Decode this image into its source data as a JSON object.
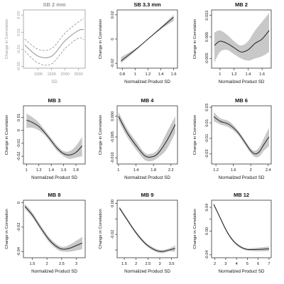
{
  "colors": {
    "band": "#c8c8c8",
    "line": "#222222",
    "axis": "#333333",
    "faded": "#9a9a9a"
  },
  "chart_data": [
    {
      "type": "line",
      "title": "SB 2 mm",
      "style": "dashed-faded",
      "xlabel": "SD",
      "ylabel": "Change in Correlation",
      "xlim": [
        450,
        2750
      ],
      "ylim": [
        -0.032,
        0.036
      ],
      "xticks": [
        1000,
        1500,
        2000,
        2500
      ],
      "yticks": [
        -0.03,
        -0.01,
        0.01,
        0.03
      ],
      "x": [
        500,
        1000,
        1500,
        2000,
        2500,
        2700
      ],
      "y": [
        -0.005,
        -0.018,
        -0.018,
        0.0,
        0.012,
        0.013
      ],
      "lower": [
        -0.012,
        -0.026,
        -0.027,
        -0.009,
        0.003,
        0.001
      ],
      "upper": [
        0.002,
        -0.01,
        -0.009,
        0.009,
        0.022,
        0.026
      ]
    },
    {
      "type": "line",
      "title": "SB 3.3 mm",
      "style": "band",
      "xlabel": "Normalized Product SD",
      "ylabel": "Change in Correlation",
      "xlim": [
        0.72,
        1.66
      ],
      "ylim": [
        -0.024,
        0.024
      ],
      "xticks": [
        0.8,
        1.0,
        1.2,
        1.4,
        1.6
      ],
      "yticks": [
        -0.02,
        0.0,
        0.02
      ],
      "x": [
        0.78,
        1.0,
        1.2,
        1.4,
        1.6
      ],
      "y": [
        -0.018,
        -0.009,
        0.0,
        0.009,
        0.018
      ],
      "lower": [
        -0.02,
        -0.01,
        0.0,
        0.008,
        0.015
      ],
      "upper": [
        -0.015,
        -0.008,
        0.0,
        0.01,
        0.02
      ]
    },
    {
      "type": "line",
      "title": "MB 2",
      "style": "band",
      "xlabel": "Normalized Product SD",
      "ylabel": "Change in Correlation",
      "xlim": [
        0.88,
        1.73
      ],
      "ylim": [
        -0.0095,
        0.0175
      ],
      "xticks": [
        1.0,
        1.2,
        1.4,
        1.6
      ],
      "yticks": [
        -0.005,
        0.005,
        0.015
      ],
      "yticklabels": [
        "-0.005",
        "0.005",
        "0.015"
      ],
      "x": [
        0.92,
        1.0,
        1.1,
        1.2,
        1.3,
        1.4,
        1.5,
        1.6,
        1.7
      ],
      "y": [
        0.001,
        0.003,
        0.002,
        0.0,
        -0.002,
        -0.001,
        0.002,
        0.004,
        0.008
      ],
      "lower": [
        -0.007,
        -0.002,
        -0.001,
        -0.003,
        -0.005,
        -0.006,
        -0.005,
        -0.004,
        -0.002
      ],
      "upper": [
        0.007,
        0.008,
        0.006,
        0.003,
        0.001,
        0.003,
        0.008,
        0.012,
        0.016
      ]
    },
    {
      "type": "line",
      "title": "MB 3",
      "style": "band",
      "xlabel": "Normalized Product SD",
      "ylabel": "Change in Correlation",
      "xlim": [
        0.95,
        1.95
      ],
      "ylim": [
        -0.026,
        0.019
      ],
      "xticks": [
        1.0,
        1.2,
        1.4,
        1.6,
        1.8
      ],
      "yticks": [
        -0.02,
        -0.01,
        0.0,
        0.01
      ],
      "x": [
        1.0,
        1.1,
        1.2,
        1.3,
        1.4,
        1.5,
        1.6,
        1.7,
        1.8,
        1.9
      ],
      "y": [
        0.008,
        0.006,
        0.003,
        -0.002,
        -0.008,
        -0.014,
        -0.018,
        -0.019,
        -0.017,
        -0.012
      ],
      "lower": [
        0.002,
        0.002,
        0.0,
        -0.004,
        -0.01,
        -0.016,
        -0.02,
        -0.022,
        -0.021,
        -0.02
      ],
      "upper": [
        0.013,
        0.01,
        0.006,
        0.0,
        -0.006,
        -0.012,
        -0.016,
        -0.016,
        -0.012,
        -0.005
      ]
    },
    {
      "type": "line",
      "title": "MB 4",
      "style": "band",
      "xlabel": "Normalized Product SD",
      "ylabel": "Change in Correlation",
      "xlim": [
        0.97,
        2.35
      ],
      "ylim": [
        -0.0115,
        0.0025
      ],
      "xticks": [
        1.0,
        1.4,
        1.8,
        2.2
      ],
      "yticks": [
        -0.01,
        -0.005,
        0.0
      ],
      "yticklabels": [
        "-0.010",
        "-0.005",
        "0.000"
      ],
      "x": [
        1.0,
        1.2,
        1.4,
        1.6,
        1.75,
        1.9,
        2.1,
        2.3
      ],
      "y": [
        0.0,
        -0.004,
        -0.007,
        -0.0095,
        -0.0098,
        -0.009,
        -0.006,
        -0.002
      ],
      "lower": [
        -0.001,
        -0.005,
        -0.008,
        -0.0105,
        -0.0108,
        -0.01,
        -0.008,
        -0.004
      ],
      "upper": [
        0.001,
        -0.003,
        -0.006,
        -0.0088,
        -0.009,
        -0.008,
        -0.004,
        0.0
      ]
    },
    {
      "type": "line",
      "title": "MB 6",
      "style": "band",
      "xlabel": "Normalized Product SD",
      "ylabel": "Change in Correlation",
      "xlim": [
        1.1,
        2.47
      ],
      "ylim": [
        -0.043,
        0.032
      ],
      "xticks": [
        1.2,
        1.6,
        2.0,
        2.4
      ],
      "yticks": [
        -0.03,
        -0.01,
        0.01,
        0.03
      ],
      "x": [
        1.15,
        1.3,
        1.5,
        1.7,
        1.9,
        2.0,
        2.1,
        2.2,
        2.3,
        2.42
      ],
      "y": [
        0.018,
        0.012,
        0.008,
        -0.002,
        -0.018,
        -0.026,
        -0.03,
        -0.027,
        -0.018,
        -0.008
      ],
      "lower": [
        0.012,
        0.008,
        0.004,
        -0.005,
        -0.021,
        -0.029,
        -0.034,
        -0.033,
        -0.026,
        -0.02
      ],
      "upper": [
        0.024,
        0.016,
        0.012,
        0.001,
        -0.015,
        -0.023,
        -0.026,
        -0.021,
        -0.01,
        0.004
      ]
    },
    {
      "type": "line",
      "title": "MB 8",
      "style": "band",
      "xlabel": "Normalized Product SD",
      "ylabel": "Change in Correlation",
      "xlim": [
        1.2,
        3.3
      ],
      "ylim": [
        -0.045,
        0.002
      ],
      "xticks": [
        1.5,
        2.0,
        2.5,
        3.0
      ],
      "yticks": [
        -0.04,
        -0.02,
        0.0
      ],
      "x": [
        1.25,
        1.5,
        1.8,
        2.1,
        2.4,
        2.6,
        2.8,
        3.0,
        3.2
      ],
      "y": [
        -0.003,
        -0.01,
        -0.021,
        -0.031,
        -0.037,
        -0.038,
        -0.037,
        -0.035,
        -0.033
      ],
      "lower": [
        -0.005,
        -0.012,
        -0.023,
        -0.033,
        -0.039,
        -0.04,
        -0.04,
        -0.039,
        -0.038
      ],
      "upper": [
        -0.001,
        -0.008,
        -0.019,
        -0.029,
        -0.035,
        -0.036,
        -0.034,
        -0.031,
        -0.028
      ]
    },
    {
      "type": "line",
      "title": "MB 9",
      "style": "band",
      "xlabel": "Normalized Product SD",
      "ylabel": "Change in Correlation",
      "xlim": [
        1.2,
        3.75
      ],
      "ylim": [
        -0.035,
        0.002
      ],
      "xticks": [
        1.5,
        2.0,
        2.5,
        3.0,
        3.5
      ],
      "yticks": [
        -0.03,
        -0.02,
        -0.01,
        0.0
      ],
      "yticklabels": [
        "",
        "-0.02",
        "",
        "0.00"
      ],
      "x": [
        1.3,
        1.6,
        2.0,
        2.4,
        2.8,
        3.1,
        3.4,
        3.65
      ],
      "y": [
        -0.003,
        -0.01,
        -0.019,
        -0.026,
        -0.03,
        -0.031,
        -0.03,
        -0.029
      ],
      "lower": [
        -0.004,
        -0.011,
        -0.02,
        -0.027,
        -0.031,
        -0.032,
        -0.031,
        -0.031
      ],
      "upper": [
        -0.002,
        -0.009,
        -0.018,
        -0.025,
        -0.029,
        -0.03,
        -0.029,
        -0.027
      ]
    },
    {
      "type": "line",
      "title": "MB 12",
      "style": "band",
      "xlabel": "Normalized Product SD",
      "ylabel": "Change in Correlation",
      "xlim": [
        1.7,
        7.2
      ],
      "ylim": [
        -0.045,
        0.052
      ],
      "xticks": [
        2,
        3,
        4,
        5,
        6,
        7
      ],
      "yticks": [
        -0.04,
        0.0,
        0.02,
        0.04
      ],
      "yticklabels": [
        "-0.04",
        "0.00",
        "",
        "0.04"
      ],
      "x": [
        1.9,
        2.5,
        3.0,
        3.5,
        4.0,
        4.5,
        5.0,
        6.0,
        7.0
      ],
      "y": [
        0.045,
        0.022,
        0.003,
        -0.012,
        -0.022,
        -0.028,
        -0.031,
        -0.031,
        -0.03
      ],
      "lower": [
        0.043,
        0.02,
        0.001,
        -0.014,
        -0.024,
        -0.03,
        -0.033,
        -0.034,
        -0.034
      ],
      "upper": [
        0.047,
        0.024,
        0.005,
        -0.01,
        -0.02,
        -0.026,
        -0.029,
        -0.028,
        -0.026
      ]
    }
  ]
}
